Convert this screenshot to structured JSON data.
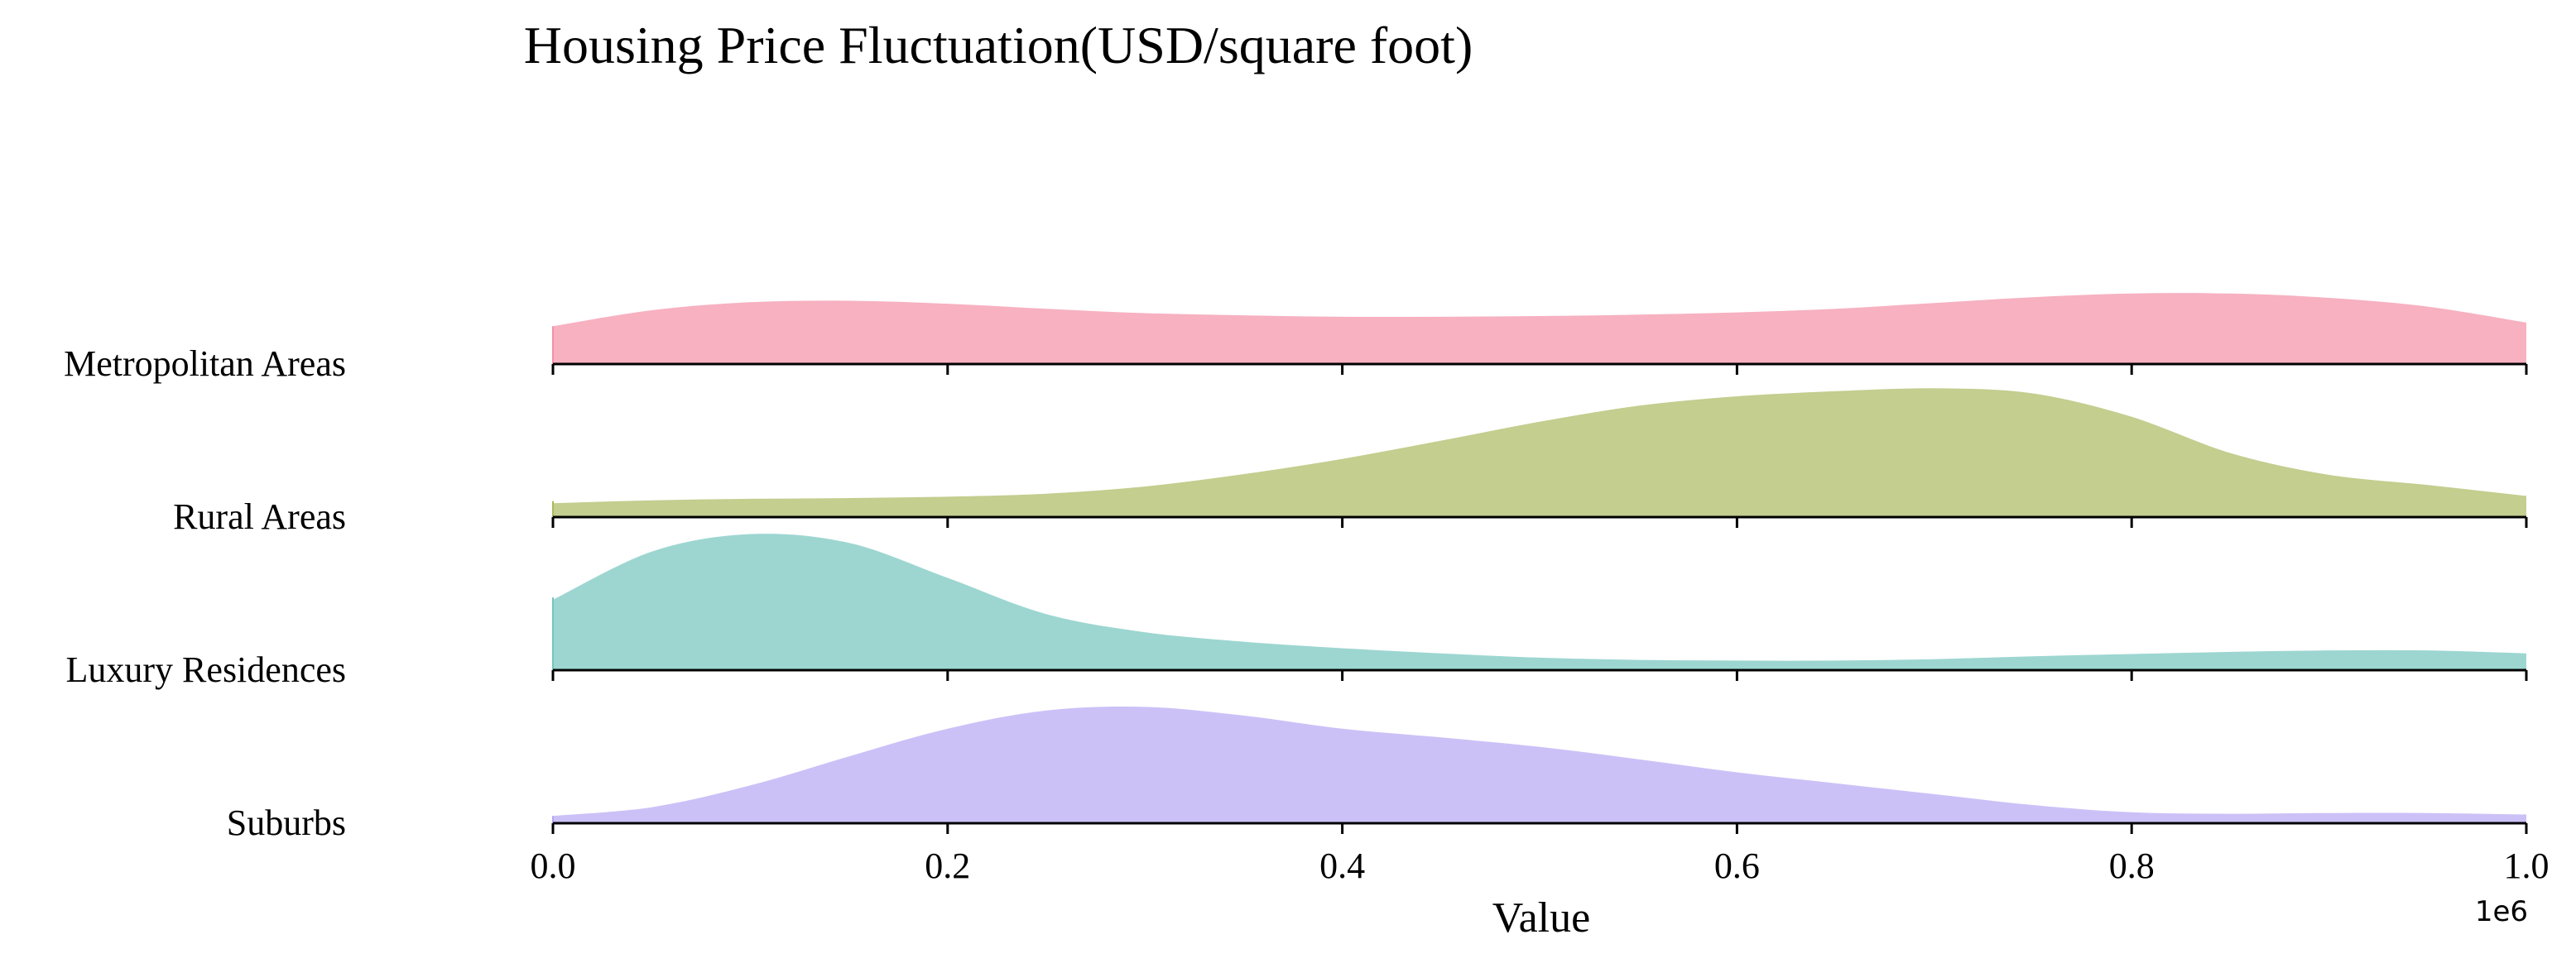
{
  "chart_data": {
    "type": "area",
    "subtype": "ridgeline",
    "title": "Housing Price Fluctuation(USD/square foot)",
    "xlabel": "Value",
    "x_multiplier_label": "1e6",
    "xlim": [
      0,
      1.0
    ],
    "xticks": [
      "0.0",
      "0.2",
      "0.4",
      "0.6",
      "0.8",
      "1.0"
    ],
    "grid": false,
    "legend": "none",
    "series": [
      {
        "name": "Metropolitan Areas",
        "color": "#f490a6",
        "x": [
          0,
          0.05,
          0.1,
          0.15,
          0.2,
          0.25,
          0.3,
          0.35,
          0.4,
          0.45,
          0.5,
          0.55,
          0.6,
          0.65,
          0.7,
          0.75,
          0.8,
          0.85,
          0.9,
          0.95,
          1.0
        ],
        "y": [
          0.52,
          0.74,
          0.85,
          0.87,
          0.83,
          0.76,
          0.7,
          0.67,
          0.65,
          0.65,
          0.66,
          0.68,
          0.71,
          0.76,
          0.84,
          0.92,
          0.97,
          0.97,
          0.91,
          0.79,
          0.57
        ]
      },
      {
        "name": "Rural Areas",
        "color": "#a9b95f",
        "x": [
          0,
          0.05,
          0.1,
          0.15,
          0.2,
          0.25,
          0.3,
          0.35,
          0.4,
          0.45,
          0.5,
          0.55,
          0.6,
          0.65,
          0.7,
          0.75,
          0.8,
          0.85,
          0.9,
          0.95,
          1.0
        ],
        "y": [
          0.22,
          0.26,
          0.28,
          0.29,
          0.31,
          0.35,
          0.45,
          0.62,
          0.83,
          1.08,
          1.34,
          1.56,
          1.69,
          1.76,
          1.8,
          1.73,
          1.41,
          0.91,
          0.61,
          0.47,
          0.32
        ]
      },
      {
        "name": "Luxury Residences",
        "color": "#73c5bd",
        "x": [
          0,
          0.05,
          0.1,
          0.15,
          0.2,
          0.25,
          0.3,
          0.35,
          0.4,
          0.45,
          0.5,
          0.55,
          0.6,
          0.65,
          0.7,
          0.75,
          0.8,
          0.85,
          0.9,
          0.95,
          1.0
        ],
        "y": [
          1.0,
          1.66,
          1.9,
          1.78,
          1.3,
          0.8,
          0.55,
          0.42,
          0.33,
          0.26,
          0.2,
          0.17,
          0.16,
          0.16,
          0.18,
          0.22,
          0.25,
          0.28,
          0.3,
          0.3,
          0.26
        ]
      },
      {
        "name": "Suburbs",
        "color": "#b7a6f4",
        "x": [
          0,
          0.05,
          0.1,
          0.15,
          0.2,
          0.25,
          0.3,
          0.35,
          0.4,
          0.45,
          0.5,
          0.55,
          0.6,
          0.65,
          0.7,
          0.75,
          0.8,
          0.85,
          0.9,
          0.95,
          1.0
        ],
        "y": [
          0.1,
          0.22,
          0.52,
          0.92,
          1.3,
          1.55,
          1.6,
          1.48,
          1.3,
          1.18,
          1.05,
          0.88,
          0.7,
          0.55,
          0.4,
          0.25,
          0.15,
          0.13,
          0.14,
          0.14,
          0.12
        ]
      }
    ]
  }
}
